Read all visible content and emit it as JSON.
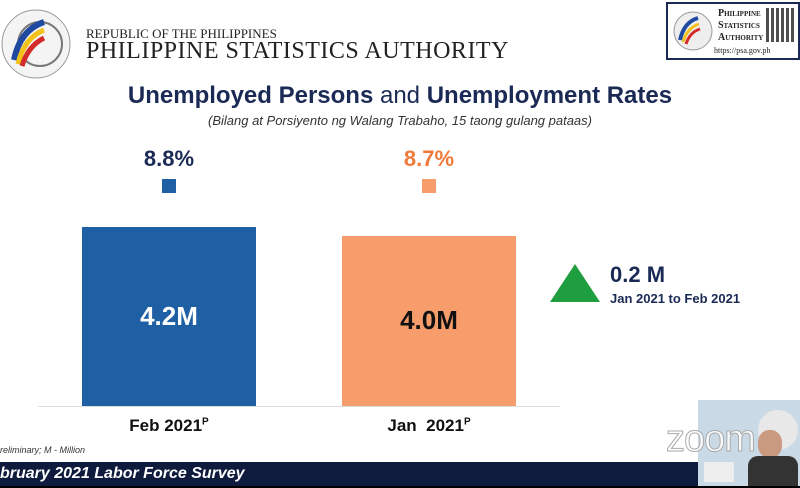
{
  "header": {
    "republic": "REPUBLIC OF THE PHILIPPINES",
    "agency": "PHILIPPINE STATISTICS AUTHORITY",
    "badge": {
      "line1": "Philippine",
      "line2": "Statistics",
      "line3": "Authority",
      "url": "https://psa.gov.ph"
    }
  },
  "slide": {
    "title_bold1": "Unemployed Persons",
    "title_and": " and ",
    "title_bold2": "Unemployment Rates",
    "subtitle": "(Bilang at Porsiyento ng Walang Trabaho, 15 taong gulang pataas)",
    "change_value": "0.2 M",
    "change_period": "Jan 2021 to Feb 2021",
    "footnote": "reliminary; M - Million",
    "footer": "bruary 2021 Labor Force Survey"
  },
  "chart_data": {
    "type": "bar",
    "categories": [
      "Feb 2021",
      "Jan  2021"
    ],
    "superscripts": [
      "P",
      "P"
    ],
    "values": [
      4.2,
      4.0
    ],
    "value_labels": [
      "4.2M",
      "4.0M"
    ],
    "rates": [
      "8.8%",
      "8.7%"
    ],
    "colors": [
      "#1f5fa3",
      "#f79d6b"
    ],
    "rate_colors": [
      "#1a2a55",
      "#f07a3a"
    ],
    "label_colors": [
      "#ffffff",
      "#111111"
    ],
    "ylim": [
      0,
      4.2
    ],
    "change_color": "#1f9e3f"
  },
  "overlay": {
    "zoom_watermark": "zoom"
  }
}
